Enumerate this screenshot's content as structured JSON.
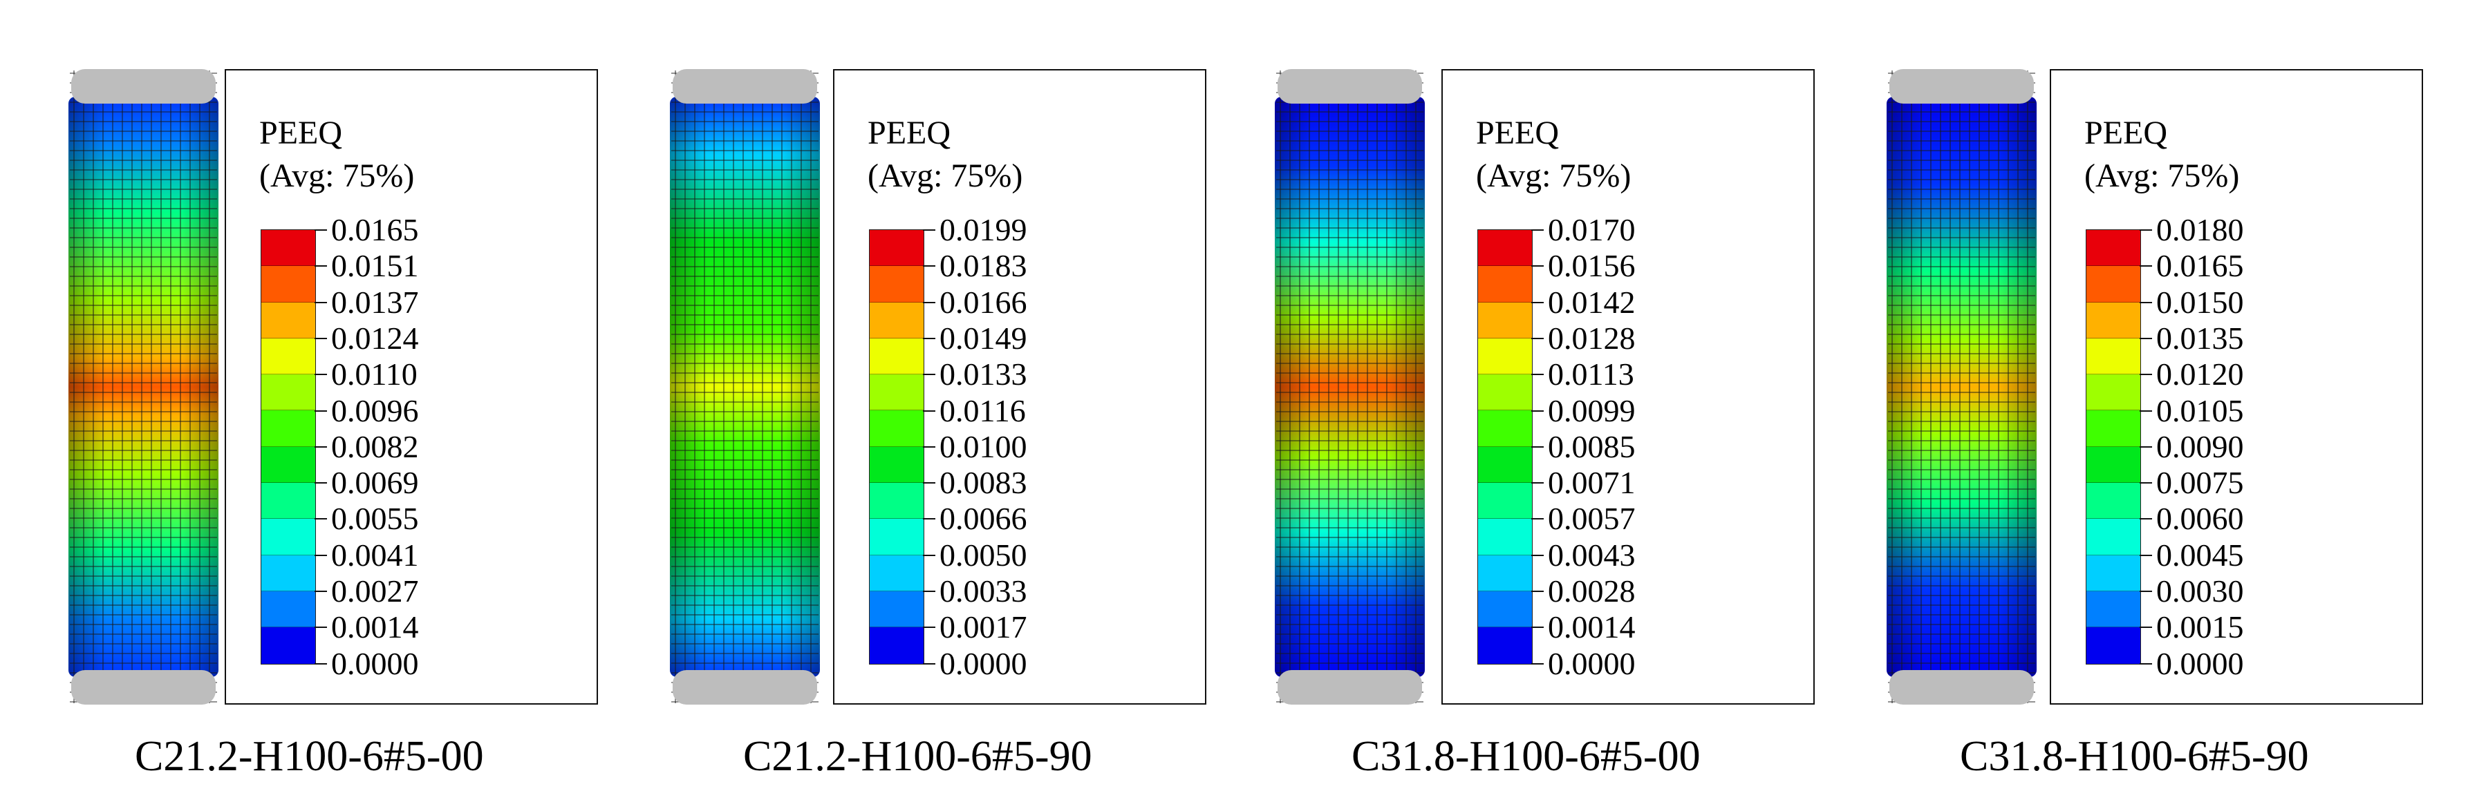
{
  "figure": {
    "panels": [
      {
        "caption": "C21.2-H100-6#5-00",
        "legend": {
          "title": "PEEQ",
          "subtitle": "(Avg: 75%)",
          "values": [
            "0.0165",
            "0.0151",
            "0.0137",
            "0.0124",
            "0.0110",
            "0.0096",
            "0.0082",
            "0.0069",
            "0.0055",
            "0.0041",
            "0.0027",
            "0.0014",
            "0.0000"
          ]
        },
        "contour": "high-strain band around mid-height with red spots"
      },
      {
        "caption": "C21.2-H100-6#5-90",
        "legend": {
          "title": "PEEQ",
          "subtitle": "(Avg: 75%)",
          "values": [
            "0.0199",
            "0.0183",
            "0.0166",
            "0.0149",
            "0.0133",
            "0.0116",
            "0.0100",
            "0.0083",
            "0.0066",
            "0.0050",
            "0.0033",
            "0.0017",
            "0.0000"
          ]
        },
        "contour": "mostly green with yellow band at mid-height"
      },
      {
        "caption": "C31.8-H100-6#5-00",
        "legend": {
          "title": "PEEQ",
          "subtitle": "(Avg: 75%)",
          "values": [
            "0.0170",
            "0.0156",
            "0.0142",
            "0.0128",
            "0.0113",
            "0.0099",
            "0.0085",
            "0.0071",
            "0.0057",
            "0.0043",
            "0.0028",
            "0.0014",
            "0.0000"
          ]
        },
        "contour": "dark blue ends, green-yellow middle with red spots"
      },
      {
        "caption": "C31.8-H100-6#5-90",
        "legend": {
          "title": "PEEQ",
          "subtitle": "(Avg: 75%)",
          "values": [
            "0.0180",
            "0.0165",
            "0.0150",
            "0.0135",
            "0.0120",
            "0.0105",
            "0.0090",
            "0.0075",
            "0.0060",
            "0.0045",
            "0.0030",
            "0.0015",
            "0.0000"
          ]
        },
        "contour": "blue ends, green-yellow barrel at mid-height with orange band"
      }
    ],
    "colors": {
      "scale": [
        "#e8000a",
        "#ff5a00",
        "#ffb100",
        "#ecff00",
        "#9eff00",
        "#3fff00",
        "#00e81c",
        "#00ff86",
        "#00ffd8",
        "#00cfff",
        "#0080ff",
        "#0033ff",
        "#0000f0"
      ],
      "mesh": "#1a1a1a",
      "frame_box": "#111111"
    }
  }
}
